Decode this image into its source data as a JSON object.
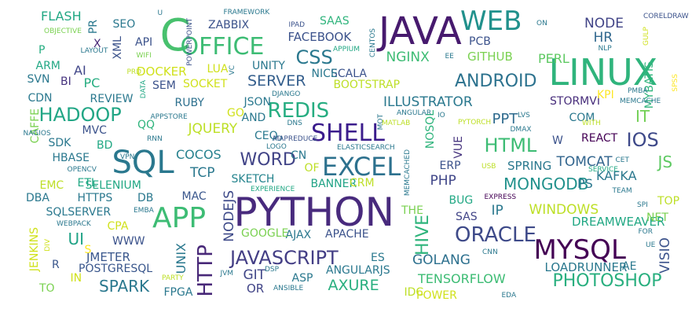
{
  "words": [
    {
      "text": "PYTHON",
      "color": "#482a7d"
    },
    {
      "text": "JAVA",
      "color": "#471a6e"
    },
    {
      "text": "LINUX",
      "color": "#2fb47c"
    },
    {
      "text": "SQL",
      "color": "#2a788e"
    },
    {
      "text": "MYSQL",
      "color": "#440154"
    },
    {
      "text": "APP",
      "color": "#3dbc74"
    },
    {
      "text": "EXCEL",
      "color": "#2d718e"
    },
    {
      "text": "C",
      "color": "#48c16e"
    },
    {
      "text": "WEB",
      "color": "#21918c"
    },
    {
      "text": "OFFICE",
      "color": "#3dbc74"
    },
    {
      "text": "SHELL",
      "color": "#3b1c8c"
    },
    {
      "text": "ORACLE",
      "color": "#3e4a89"
    },
    {
      "text": "JAVASCRIPT",
      "color": "#433e85"
    },
    {
      "text": "HTTP",
      "color": "#482878"
    },
    {
      "text": "HADOOP",
      "color": "#21a685"
    },
    {
      "text": "ANDROID",
      "color": "#2c728e"
    },
    {
      "text": "PHOTOSHOP",
      "color": "#29af7f"
    },
    {
      "text": "HTML",
      "color": "#3dbc74"
    },
    {
      "text": "REDIS",
      "color": "#26ad81"
    },
    {
      "text": "IOS",
      "color": "#3e4989"
    },
    {
      "text": "CSS",
      "color": "#2a788e"
    },
    {
      "text": "HIVE",
      "color": "#2fb47c"
    },
    {
      "text": "WORD",
      "color": "#414487"
    },
    {
      "text": "SPARK",
      "color": "#2a788e"
    },
    {
      "text": "MONGODB",
      "color": "#21918c"
    },
    {
      "text": "ILLUSTRATOR",
      "color": "#2a788e"
    },
    {
      "text": "NODE",
      "color": "#414487"
    },
    {
      "text": "HR",
      "color": "#31688e"
    },
    {
      "text": "JS",
      "color": "#5ec962"
    },
    {
      "text": "IT",
      "color": "#73d056"
    },
    {
      "text": "PHP",
      "color": "#404688"
    },
    {
      "text": "SERVER",
      "color": "#355f8d"
    },
    {
      "text": "UI",
      "color": "#20a386"
    },
    {
      "text": "AXURE",
      "color": "#29af7f"
    },
    {
      "text": "GOLANG",
      "color": "#2d708e"
    },
    {
      "text": "PPT",
      "color": "#2f6b8e"
    },
    {
      "text": "NODEJS",
      "color": "#3e4a89"
    },
    {
      "text": "TOMCAT",
      "color": "#32658e"
    },
    {
      "text": "JQUERY",
      "color": "#bddf26"
    },
    {
      "text": "GIT",
      "color": "#404688"
    },
    {
      "text": "COCOS",
      "color": "#26818e"
    },
    {
      "text": "UNIX",
      "color": "#2a788e"
    },
    {
      "text": "SPRING",
      "color": "#2a788e"
    },
    {
      "text": "TCP",
      "color": "#2a788e"
    },
    {
      "text": "NGINX",
      "color": "#3dbc74"
    },
    {
      "text": "VISIO",
      "color": "#3b528b"
    },
    {
      "text": "WINDOWS",
      "color": "#bddf26"
    },
    {
      "text": "TENSORFLOW",
      "color": "#3dbc74"
    },
    {
      "text": "DREAMWEAVER",
      "color": "#22a884"
    },
    {
      "text": "KAFKA",
      "color": "#2a788e"
    },
    {
      "text": "PERL",
      "color": "#5ec962"
    },
    {
      "text": "FLASH",
      "color": "#22a884"
    },
    {
      "text": "IP",
      "color": "#2a788e"
    },
    {
      "text": "PS",
      "color": "#2a788e"
    },
    {
      "text": "ERP",
      "color": "#3b528b"
    },
    {
      "text": "VUE",
      "color": "#46337e"
    },
    {
      "text": "SAS",
      "color": "#414487"
    },
    {
      "text": "SQLSERVER",
      "color": "#2a788e"
    },
    {
      "text": "LOADRUNNER",
      "color": "#2a788e"
    },
    {
      "text": "OR",
      "color": "#414487"
    },
    {
      "text": "FACEBOOK",
      "color": "#3b528b"
    },
    {
      "text": "DOCKER",
      "color": "#d0e11c"
    },
    {
      "text": "GITHUB",
      "color": "#7ad151"
    },
    {
      "text": "JMETER",
      "color": "#39568c"
    },
    {
      "text": "POSTGRESQL",
      "color": "#39568c"
    },
    {
      "text": "ASP",
      "color": "#2a788e"
    },
    {
      "text": "AJAX",
      "color": "#2a788e"
    },
    {
      "text": "APACHE",
      "color": "#3b528b"
    },
    {
      "text": "SOCKET",
      "color": "#d0e11c"
    },
    {
      "text": "BOOTSTRAP",
      "color": "#bddf26"
    },
    {
      "text": "SELENIUM",
      "color": "#22a884"
    },
    {
      "text": "SKETCH",
      "color": "#25848e"
    },
    {
      "text": "RUBY",
      "color": "#2d708e"
    },
    {
      "text": "STORMVI",
      "color": "#472d7b"
    },
    {
      "text": "NOSQL",
      "color": "#2fb47c"
    },
    {
      "text": "SCALA",
      "color": "#3b528b"
    },
    {
      "text": "BANNER",
      "color": "#20a386"
    },
    {
      "text": "MVC",
      "color": "#3b528b"
    },
    {
      "text": "COM",
      "color": "#2a788e"
    },
    {
      "text": "REACT",
      "color": "#440154"
    },
    {
      "text": "JSON",
      "color": "#2a788e"
    },
    {
      "text": "HBASE",
      "color": "#2a788e"
    },
    {
      "text": "MYBATIS",
      "color": "#2fb47c"
    },
    {
      "text": "SEO",
      "color": "#2a788e"
    },
    {
      "text": "API",
      "color": "#3b528b"
    },
    {
      "text": "ZABBIX",
      "color": "#3b528b"
    },
    {
      "text": "SAAS",
      "color": "#2fb47c"
    },
    {
      "text": "PCB",
      "color": "#3b528b"
    },
    {
      "text": "AI",
      "color": "#404688"
    },
    {
      "text": "PC",
      "color": "#26ad81"
    },
    {
      "text": "BI",
      "color": "#46337e"
    },
    {
      "text": "QQ",
      "color": "#2fb47c"
    },
    {
      "text": "SDK",
      "color": "#2a788e"
    },
    {
      "text": "LUA",
      "color": "#d0e11c"
    },
    {
      "text": "SEM",
      "color": "#3b528b"
    },
    {
      "text": "UNITY",
      "color": "#2a788e"
    },
    {
      "text": "GO",
      "color": "#d0e11c"
    },
    {
      "text": "CEO",
      "color": "#2a788e"
    },
    {
      "text": "AND",
      "color": "#2a788e"
    },
    {
      "text": "NICE",
      "color": "#2a788e"
    },
    {
      "text": "ETL",
      "color": "#22a884"
    },
    {
      "text": "DB",
      "color": "#2a788e"
    },
    {
      "text": "MAC",
      "color": "#39568c"
    },
    {
      "text": "WWW",
      "color": "#3b528b"
    },
    {
      "text": "GOOGLE",
      "color": "#7ad151"
    },
    {
      "text": "ES",
      "color": "#2a788e"
    },
    {
      "text": "AE",
      "color": "#2a788e"
    },
    {
      "text": "NET",
      "color": "#7ad151"
    },
    {
      "text": "TOP",
      "color": "#bddf26"
    },
    {
      "text": "THE",
      "color": "#7ad151"
    },
    {
      "text": "BUG",
      "color": "#22a884"
    },
    {
      "text": "CRM",
      "color": "#bddf26"
    },
    {
      "text": "KPI",
      "color": "#fde725"
    },
    {
      "text": "TO",
      "color": "#7ad151"
    },
    {
      "text": "IN",
      "color": "#d0e11c"
    },
    {
      "text": "R",
      "color": "#39568c"
    },
    {
      "text": "S",
      "color": "#fde725"
    },
    {
      "text": "W",
      "color": "#3b528b"
    },
    {
      "text": "P",
      "color": "#26ad81"
    },
    {
      "text": "X",
      "color": "#482878"
    },
    {
      "text": "ARM",
      "color": "#22a884"
    },
    {
      "text": "SVN",
      "color": "#2a788e"
    },
    {
      "text": "CDN",
      "color": "#2a788e"
    },
    {
      "text": "REVIEW",
      "color": "#2a788e"
    },
    {
      "text": "CAFFE",
      "color": "#7ad151"
    },
    {
      "text": "NAGIOS",
      "color": "#2a788e"
    },
    {
      "text": "BD",
      "color": "#22a884"
    },
    {
      "text": "RNN",
      "color": "#2a788e"
    },
    {
      "text": "VPN",
      "color": "#2a788e"
    },
    {
      "text": "OPENCV",
      "color": "#2a788e"
    },
    {
      "text": "EMC",
      "color": "#bddf26"
    },
    {
      "text": "DBA",
      "color": "#2a788e"
    },
    {
      "text": "HTTPS",
      "color": "#2a788e"
    },
    {
      "text": "EMBA",
      "color": "#2a788e"
    },
    {
      "text": "WEBPACK",
      "color": "#2a788e"
    },
    {
      "text": "CPA",
      "color": "#d0e11c"
    },
    {
      "text": "JENKINS",
      "color": "#d0e11c"
    },
    {
      "text": "DIV",
      "color": "#d0e11c"
    },
    {
      "text": "FPGA",
      "color": "#2a788e"
    },
    {
      "text": "PARTY",
      "color": "#bddf26"
    },
    {
      "text": "JVM",
      "color": "#2a788e"
    },
    {
      "text": "DSP",
      "color": "#2a788e"
    },
    {
      "text": "ANGULARJS",
      "color": "#2a788e"
    },
    {
      "text": "ANSIBLE",
      "color": "#2a788e"
    },
    {
      "text": "IDC",
      "color": "#bddf26"
    },
    {
      "text": "POWER",
      "color": "#d0e11c"
    },
    {
      "text": "EDA",
      "color": "#2a788e"
    },
    {
      "text": "CNN",
      "color": "#2a788e"
    },
    {
      "text": "FOR",
      "color": "#2a788e"
    },
    {
      "text": "UE",
      "color": "#2a788e"
    },
    {
      "text": "SPI",
      "color": "#2a788e"
    },
    {
      "text": "TEAM",
      "color": "#2a788e"
    },
    {
      "text": "CET",
      "color": "#2a788e"
    },
    {
      "text": "SERVICE",
      "color": "#22a884"
    },
    {
      "text": "USB",
      "color": "#bddf26"
    },
    {
      "text": "EXPRESS",
      "color": "#440154"
    },
    {
      "text": "OF",
      "color": "#bddf26"
    },
    {
      "text": "CN",
      "color": "#2a788e"
    },
    {
      "text": "AD",
      "color": "#2a788e"
    },
    {
      "text": "MAPREDUCE",
      "color": "#3b528b"
    },
    {
      "text": "MEMCACHED",
      "color": "#2a788e"
    },
    {
      "text": "ELASTICSEARCH",
      "color": "#2a788e"
    },
    {
      "text": "EXPERIENCE",
      "color": "#22a884"
    },
    {
      "text": "LOGO",
      "color": "#2a788e"
    },
    {
      "text": "DNS",
      "color": "#2a788e"
    },
    {
      "text": "MOT",
      "color": "#2a788e"
    },
    {
      "text": "MATLAB",
      "color": "#bddf26"
    },
    {
      "text": "ANGULAR",
      "color": "#2a788e"
    },
    {
      "text": "IO",
      "color": "#2a788e"
    },
    {
      "text": "PYTORCH",
      "color": "#bddf26"
    },
    {
      "text": "DMAX",
      "color": "#2a788e"
    },
    {
      "text": "LVS",
      "color": "#2a788e"
    },
    {
      "text": "WITH",
      "color": "#bddf26"
    },
    {
      "text": "PMBA",
      "color": "#2a788e"
    },
    {
      "text": "MEMCACHE",
      "color": "#2a788e"
    },
    {
      "text": "SPSS",
      "color": "#fde725"
    },
    {
      "text": "GULP",
      "color": "#d0e11c"
    },
    {
      "text": "CORELDRAW",
      "color": "#3b528b"
    },
    {
      "text": "NLP",
      "color": "#2a788e"
    },
    {
      "text": "ON",
      "color": "#2a788e"
    },
    {
      "text": "EE",
      "color": "#2a788e"
    },
    {
      "text": "APPIUM",
      "color": "#22a884"
    },
    {
      "text": "CENTOS",
      "color": "#2a788e"
    },
    {
      "text": "IPAD",
      "color": "#3b528b"
    },
    {
      "text": "FRAMEWORK",
      "color": "#2a788e"
    },
    {
      "text": "POWERPOINT",
      "color": "#3b528b"
    },
    {
      "text": "U",
      "color": "#2a788e"
    },
    {
      "text": "OBJECTIVE",
      "color": "#7ad151"
    },
    {
      "text": "LAYOUT",
      "color": "#2a788e"
    },
    {
      "text": "XML",
      "color": "#3b528b"
    },
    {
      "text": "PR",
      "color": "#2a788e"
    },
    {
      "text": "WIFI",
      "color": "#7ad151"
    },
    {
      "text": "VC",
      "color": "#2a788e"
    },
    {
      "text": "PRD",
      "color": "#bddf26"
    },
    {
      "text": "DATA",
      "color": "#22a884"
    },
    {
      "text": "APPSTORE",
      "color": "#2a788e"
    },
    {
      "text": "DJANGO",
      "color": "#2a788e"
    }
  ]
}
